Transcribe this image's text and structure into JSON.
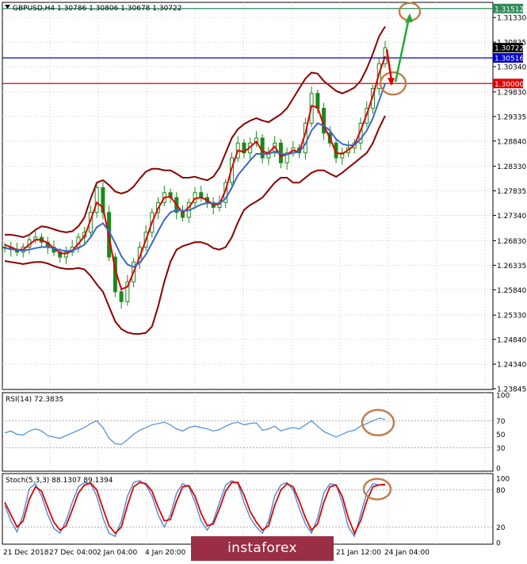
{
  "chart_data": [
    {
      "type": "line",
      "panel": "price",
      "title": "GBPUSD,H4  1.30786 1.30806 1.30678 1.30722",
      "symbol": "GBPUSD,H4",
      "ohlc": {
        "open": 1.30786,
        "high": 1.30806,
        "low": 1.30678,
        "close": 1.30722
      },
      "ylim": [
        1.23845,
        1.3162
      ],
      "y_ticks": [
        "1.31330",
        "1.30835",
        "1.30340",
        "1.29830",
        "1.29335",
        "1.28840",
        "1.28330",
        "1.27835",
        "1.27340",
        "1.26830",
        "1.26335",
        "1.25840",
        "1.25330",
        "1.24840",
        "1.24340",
        "1.23845"
      ],
      "x_ticks": [
        "21 Dec 2018",
        "27 Dec 04:00",
        "2 Jan 04:00",
        "4 Jan 20:00",
        "21 Jan 12:00",
        "24 Jan 04:00"
      ],
      "levels": [
        {
          "value": 1.31512,
          "label": "1.31512",
          "color": "#2e8b57"
        },
        {
          "value": 1.30722,
          "label": "1.30722",
          "color": "#000000"
        },
        {
          "value": 1.30516,
          "label": "1.30516",
          "color": "#0000cd"
        },
        {
          "value": 1.3,
          "label": "1.30000",
          "color": "#e00000"
        }
      ],
      "series": [
        {
          "key": "close",
          "color": "#1a8a1a",
          "values": [
            1.267,
            1.2665,
            1.266,
            1.267,
            1.2685,
            1.269,
            1.268,
            1.267,
            1.266,
            1.265,
            1.266,
            1.267,
            1.269,
            1.27,
            1.274,
            1.279,
            1.274,
            1.265,
            1.258,
            1.256,
            1.26,
            1.264,
            1.267,
            1.27,
            1.274,
            1.276,
            1.278,
            1.277,
            1.274,
            1.273,
            1.276,
            1.278,
            1.277,
            1.276,
            1.275,
            1.276,
            1.28,
            1.285,
            1.288,
            1.286,
            1.288,
            1.289,
            1.285,
            1.286,
            1.288,
            1.284,
            1.286,
            1.287,
            1.286,
            1.292,
            1.298,
            1.295,
            1.29,
            1.288,
            1.285,
            1.286,
            1.287,
            1.288,
            1.292,
            1.295,
            1.299,
            1.304,
            1.3072
          ]
        },
        {
          "key": "ma_fast",
          "color": "#e00000",
          "values": [
            1.2675,
            1.267,
            1.2665,
            1.2665,
            1.2675,
            1.2685,
            1.2685,
            1.2678,
            1.2668,
            1.2658,
            1.2657,
            1.2663,
            1.2677,
            1.2692,
            1.2725,
            1.276,
            1.275,
            1.269,
            1.2625,
            1.2585,
            1.259,
            1.262,
            1.265,
            1.2685,
            1.272,
            1.2748,
            1.277,
            1.2772,
            1.2755,
            1.274,
            1.275,
            1.2768,
            1.277,
            1.2765,
            1.2755,
            1.2757,
            1.2785,
            1.283,
            1.2865,
            1.2862,
            1.2872,
            1.2883,
            1.2863,
            1.286,
            1.2873,
            1.2853,
            1.2857,
            1.2865,
            1.2862,
            1.29,
            1.2955,
            1.2952,
            1.2915,
            1.289,
            1.286,
            1.2858,
            1.2866,
            1.2876,
            1.2905,
            1.2938,
            1.2975,
            1.302,
            1.3055
          ]
        },
        {
          "key": "ma_slow",
          "color": "#3a66d0",
          "values": [
            1.2668,
            1.2666,
            1.2664,
            1.2663,
            1.2665,
            1.2668,
            1.267,
            1.267,
            1.2668,
            1.2664,
            1.2662,
            1.2663,
            1.2668,
            1.2675,
            1.269,
            1.271,
            1.2718,
            1.2702,
            1.2678,
            1.2652,
            1.2635,
            1.263,
            1.2638,
            1.2655,
            1.2678,
            1.2702,
            1.2725,
            1.274,
            1.2745,
            1.2743,
            1.2744,
            1.275,
            1.2756,
            1.2759,
            1.2758,
            1.2758,
            1.2768,
            1.279,
            1.2815,
            1.283,
            1.2845,
            1.2858,
            1.2858,
            1.2858,
            1.2863,
            1.2858,
            1.2857,
            1.286,
            1.2862,
            1.2878,
            1.2905,
            1.292,
            1.2915,
            1.2905,
            1.2888,
            1.2878,
            1.2875,
            1.2876,
            1.2888,
            1.2905,
            1.293,
            1.2965,
            1.3
          ]
        },
        {
          "key": "bb_upper",
          "color": "#8b0000",
          "values": [
            1.2695,
            1.2695,
            1.2693,
            1.269,
            1.2695,
            1.2705,
            1.2712,
            1.271,
            1.2706,
            1.2702,
            1.27,
            1.2702,
            1.2712,
            1.273,
            1.2768,
            1.28,
            1.2805,
            1.2795,
            1.2782,
            1.2778,
            1.2782,
            1.2792,
            1.2808,
            1.2822,
            1.2828,
            1.2828,
            1.2825,
            1.2825,
            1.2818,
            1.281,
            1.281,
            1.2812,
            1.2808,
            1.2805,
            1.2812,
            1.283,
            1.286,
            1.289,
            1.2908,
            1.2918,
            1.2925,
            1.293,
            1.2925,
            1.2922,
            1.293,
            1.2938,
            1.295,
            1.297,
            1.299,
            1.301,
            1.3022,
            1.302,
            1.3005,
            1.2995,
            1.2985,
            1.298,
            1.2985,
            1.2992,
            1.3005,
            1.303,
            1.306,
            1.3095,
            1.3115
          ]
        },
        {
          "key": "bb_lower",
          "color": "#8b0000",
          "values": [
            1.2642,
            1.264,
            1.2638,
            1.2636,
            1.2638,
            1.264,
            1.264,
            1.2637,
            1.2632,
            1.2628,
            1.2626,
            1.2626,
            1.2628,
            1.2625,
            1.2612,
            1.2595,
            1.258,
            1.255,
            1.252,
            1.2505,
            1.2498,
            1.2495,
            1.2495,
            1.2497,
            1.251,
            1.255,
            1.26,
            1.264,
            1.2665,
            1.2672,
            1.2676,
            1.268,
            1.268,
            1.2676,
            1.2668,
            1.2665,
            1.267,
            1.269,
            1.272,
            1.2745,
            1.2755,
            1.2762,
            1.277,
            1.2785,
            1.28,
            1.281,
            1.281,
            1.28,
            1.28,
            1.281,
            1.282,
            1.2825,
            1.2825,
            1.2818,
            1.2812,
            1.282,
            1.283,
            1.284,
            1.285,
            1.286,
            1.288,
            1.291,
            1.2935
          ]
        }
      ]
    },
    {
      "type": "line",
      "panel": "rsi",
      "title": "RSI(14) 72.3835",
      "ylim": [
        0,
        100
      ],
      "y_ticks": [
        "100",
        "70",
        "50",
        "30",
        "0"
      ],
      "series": [
        {
          "key": "rsi",
          "color": "#4a8ad8",
          "values": [
            52,
            55,
            50,
            49,
            55,
            58,
            55,
            48,
            46,
            44,
            48,
            52,
            56,
            60,
            66,
            70,
            60,
            44,
            36,
            35,
            42,
            50,
            56,
            60,
            64,
            66,
            68,
            64,
            58,
            55,
            60,
            62,
            60,
            58,
            55,
            57,
            62,
            66,
            68,
            64,
            66,
            67,
            56,
            58,
            62,
            55,
            58,
            60,
            58,
            64,
            70,
            62,
            54,
            50,
            46,
            50,
            54,
            56,
            62,
            66,
            70,
            74,
            72
          ]
        }
      ]
    },
    {
      "type": "line",
      "panel": "stochastic",
      "title": "Stoch(5,3,3) 88.1307 89.1394",
      "ylim": [
        0,
        100
      ],
      "y_ticks": [
        "100",
        "80",
        "20",
        "0"
      ],
      "series": [
        {
          "key": "main",
          "color": "#4a8ad8",
          "values": [
            55,
            30,
            12,
            40,
            82,
            90,
            70,
            40,
            18,
            10,
            30,
            60,
            85,
            92,
            90,
            70,
            35,
            10,
            5,
            30,
            70,
            92,
            95,
            88,
            70,
            40,
            20,
            40,
            75,
            90,
            85,
            60,
            30,
            15,
            30,
            60,
            88,
            95,
            90,
            60,
            35,
            20,
            10,
            30,
            70,
            88,
            92,
            80,
            50,
            25,
            10,
            35,
            75,
            90,
            88,
            60,
            20,
            5,
            40,
            75,
            90,
            88,
            88
          ]
        },
        {
          "key": "signal",
          "color": "#e00000",
          "values": [
            60,
            40,
            20,
            30,
            65,
            85,
            78,
            52,
            28,
            15,
            22,
            48,
            75,
            88,
            91,
            80,
            50,
            22,
            10,
            20,
            55,
            85,
            92,
            90,
            78,
            52,
            30,
            32,
            62,
            85,
            87,
            70,
            42,
            22,
            25,
            50,
            78,
            92,
            92,
            72,
            45,
            28,
            15,
            22,
            55,
            80,
            90,
            85,
            62,
            35,
            15,
            25,
            60,
            85,
            88,
            70,
            35,
            10,
            30,
            62,
            85,
            88,
            89
          ]
        }
      ]
    }
  ],
  "logo": {
    "brand": "instaforex"
  }
}
